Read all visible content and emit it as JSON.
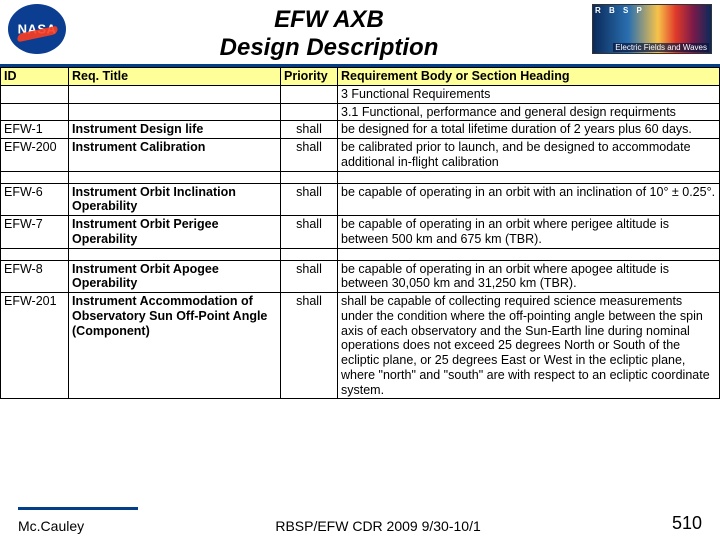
{
  "header": {
    "title_line1": "EFW AXB",
    "title_line2": "Design Description",
    "title_fontsize": 24,
    "title_weight": "bold",
    "title_style": "italic",
    "rbsp_top": "R B S P",
    "rbsp_bottom": "Electric Fields and Waves"
  },
  "table": {
    "columns": [
      "ID",
      "Req. Title",
      "Priority",
      "Requirement Body or Section Heading"
    ],
    "header_bg": "#ffff99",
    "cell_fontsize": 12.5,
    "rows": [
      {
        "type": "section",
        "id": "",
        "title": "",
        "priority": "",
        "body": "3 Functional Requirements"
      },
      {
        "type": "section",
        "id": "",
        "title": "",
        "priority": "",
        "body": "3.1 Functional, performance and general design requirments"
      },
      {
        "type": "data",
        "id": "EFW-1",
        "title": "Instrument Design life",
        "priority": "shall",
        "body": "be designed for a total lifetime duration of 2 years plus 60 days."
      },
      {
        "type": "data",
        "id": "EFW-200",
        "title": "Instrument Calibration",
        "priority": "shall",
        "body": "be calibrated prior to launch, and be designed to accommodate additional in-flight calibration"
      },
      {
        "type": "spacer"
      },
      {
        "type": "data",
        "id": "EFW-6",
        "title": "Instrument Orbit Inclination Operability",
        "priority": "shall",
        "body": "be capable of operating in an orbit with an inclination of 10° ± 0.25°."
      },
      {
        "type": "data",
        "id": "EFW-7",
        "title": "Instrument Orbit Perigee Operability",
        "priority": "shall",
        "body": "be capable of operating in an orbit where perigee altitude is between 500 km and 675 km (TBR)."
      },
      {
        "type": "spacer"
      },
      {
        "type": "data",
        "id": "EFW-8",
        "title": "Instrument Orbit Apogee Operability",
        "priority": "shall",
        "body": "be capable of operating in an orbit where apogee altitude is between 30,050 km and 31,250 km (TBR)."
      },
      {
        "type": "data",
        "id": "EFW-201",
        "title": "Instrument Accommodation of Observatory Sun Off-Point Angle (Component)",
        "priority": "shall",
        "body": "shall  be capable of collecting required science measurements under the condition where the off-pointing angle between the spin axis of each observatory and the Sun-Earth line during nominal operations does not exceed  25 degrees North or South of the ecliptic plane, or 25 degrees East or West in the ecliptic plane, where \"north\" and \"south\" are with respect to an ecliptic coordinate system."
      }
    ]
  },
  "footer": {
    "left": "Mc.Cauley",
    "center": "RBSP/EFW CDR 2009 9/30-10/1",
    "page": "510",
    "rule_color": "#023f88"
  },
  "colors": {
    "rule": "#023f88",
    "background": "#ffffff",
    "border": "#000000"
  }
}
